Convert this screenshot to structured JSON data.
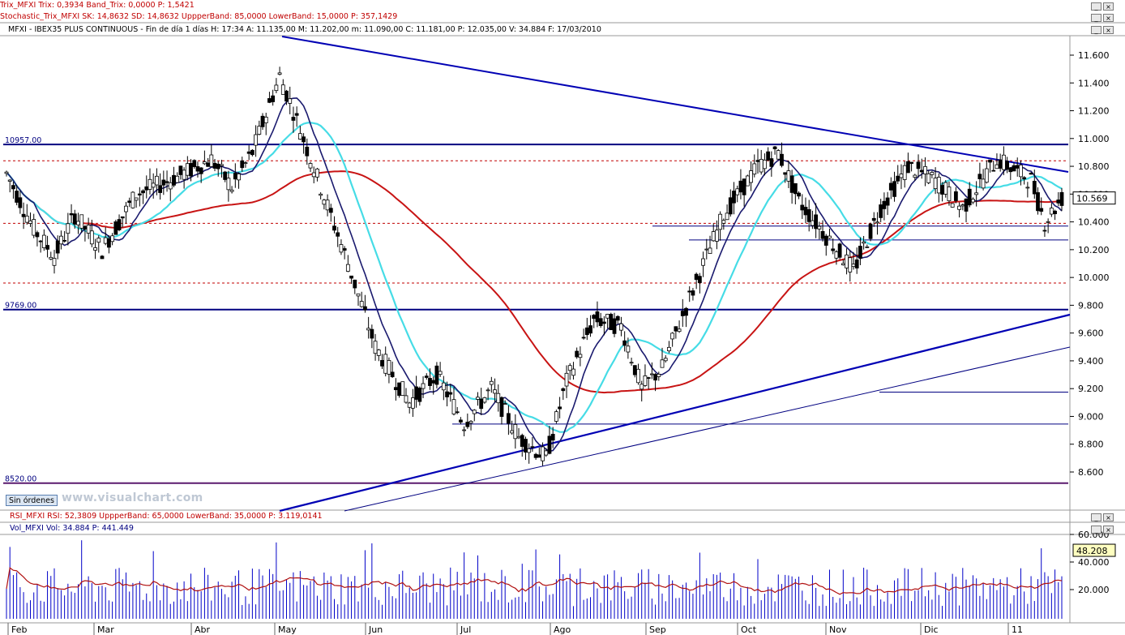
{
  "indicators": {
    "trix": "Trix_MFXI  Trix: 0,3934  Band_Trix: 0,0000  P: 1,5421",
    "stoch": "Stochastic_Trix_MFXI  SK: 14,8632  SD: 14,8632  UppperBand: 85,0000  LowerBand: 15,0000  P: 357,1429",
    "main": "MFXI - IBEX35 PLUS CONTINUOUS - Fin de día 1 días  H: 17:34  A: 11.135,00  M: 11.202,00  m: 11.090,00  C: 11.181,00  P: 12.035,00  V: 34.884  F: 17/03/2010",
    "rsi": "RSI_MFXI  RSI: 52,3809  UppperBand: 65,0000  LowerBand: 35,0000  P: 3.119,0141",
    "vol": "Vol_MFXI  Vol: 34.884  P: 441.449"
  },
  "window_buttons": {
    "min": "_",
    "max": "□",
    "close": "×"
  },
  "orders_button": "Sin órdenes",
  "watermark": "www.visualchart.com",
  "price_labels": {
    "l10957": "10957.00",
    "l9769": "9769.00",
    "l8520": "8520.00"
  },
  "last_price": "10.569",
  "last_volume": "48.208",
  "colors": {
    "trendline": "#0000b4",
    "ma_long": "#c81414",
    "ma_fast": "#1a1a6e",
    "ma_cyan": "#46dce6",
    "support": "#000080",
    "volume": "#0000c8"
  },
  "chart_data": {
    "type": "candlestick",
    "price_axis": [
      "11.600",
      "11.400",
      "11.200",
      "11.000",
      "10.800",
      "10.600",
      "10.400",
      "10.200",
      "10.000",
      "9.800",
      "9.600",
      "9.400",
      "9.200",
      "9.000",
      "8.800",
      "8.600"
    ],
    "volume_axis": [
      "60.000",
      "40.000",
      "20.000"
    ],
    "months": [
      "Feb",
      "Mar",
      "Abr",
      "May",
      "Jun",
      "Jul",
      "Ago",
      "Sep",
      "Oct",
      "Nov",
      "Dic",
      "11"
    ],
    "horizontal_levels": [
      10957,
      9769,
      8520
    ],
    "last_close": 10569
  }
}
